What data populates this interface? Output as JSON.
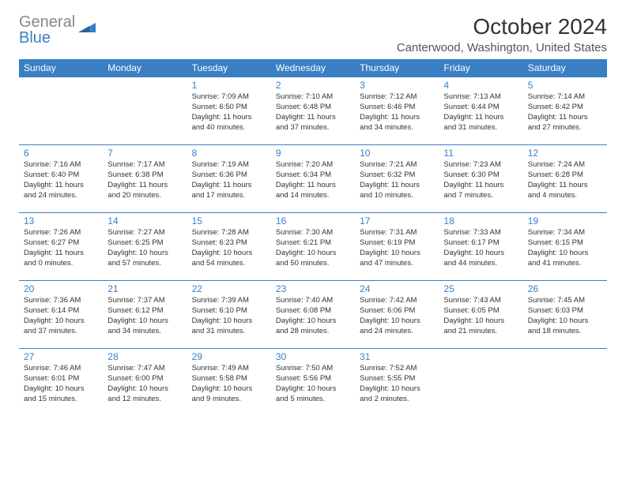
{
  "brand": {
    "word1": "General",
    "word2": "Blue"
  },
  "title": "October 2024",
  "location": "Canterwood, Washington, United States",
  "colors": {
    "header_bg": "#3a7fc4",
    "header_text": "#ffffff",
    "daynum": "#3a7fc4",
    "rule": "#3a7fc4",
    "body_text": "#333333"
  },
  "day_headers": [
    "Sunday",
    "Monday",
    "Tuesday",
    "Wednesday",
    "Thursday",
    "Friday",
    "Saturday"
  ],
  "weeks": [
    [
      null,
      null,
      {
        "n": "1",
        "sr": "7:09 AM",
        "ss": "6:50 PM",
        "dl": "11 hours and 40 minutes."
      },
      {
        "n": "2",
        "sr": "7:10 AM",
        "ss": "6:48 PM",
        "dl": "11 hours and 37 minutes."
      },
      {
        "n": "3",
        "sr": "7:12 AM",
        "ss": "6:46 PM",
        "dl": "11 hours and 34 minutes."
      },
      {
        "n": "4",
        "sr": "7:13 AM",
        "ss": "6:44 PM",
        "dl": "11 hours and 31 minutes."
      },
      {
        "n": "5",
        "sr": "7:14 AM",
        "ss": "6:42 PM",
        "dl": "11 hours and 27 minutes."
      }
    ],
    [
      {
        "n": "6",
        "sr": "7:16 AM",
        "ss": "6:40 PM",
        "dl": "11 hours and 24 minutes."
      },
      {
        "n": "7",
        "sr": "7:17 AM",
        "ss": "6:38 PM",
        "dl": "11 hours and 20 minutes."
      },
      {
        "n": "8",
        "sr": "7:19 AM",
        "ss": "6:36 PM",
        "dl": "11 hours and 17 minutes."
      },
      {
        "n": "9",
        "sr": "7:20 AM",
        "ss": "6:34 PM",
        "dl": "11 hours and 14 minutes."
      },
      {
        "n": "10",
        "sr": "7:21 AM",
        "ss": "6:32 PM",
        "dl": "11 hours and 10 minutes."
      },
      {
        "n": "11",
        "sr": "7:23 AM",
        "ss": "6:30 PM",
        "dl": "11 hours and 7 minutes."
      },
      {
        "n": "12",
        "sr": "7:24 AM",
        "ss": "6:28 PM",
        "dl": "11 hours and 4 minutes."
      }
    ],
    [
      {
        "n": "13",
        "sr": "7:26 AM",
        "ss": "6:27 PM",
        "dl": "11 hours and 0 minutes."
      },
      {
        "n": "14",
        "sr": "7:27 AM",
        "ss": "6:25 PM",
        "dl": "10 hours and 57 minutes."
      },
      {
        "n": "15",
        "sr": "7:28 AM",
        "ss": "6:23 PM",
        "dl": "10 hours and 54 minutes."
      },
      {
        "n": "16",
        "sr": "7:30 AM",
        "ss": "6:21 PM",
        "dl": "10 hours and 50 minutes."
      },
      {
        "n": "17",
        "sr": "7:31 AM",
        "ss": "6:19 PM",
        "dl": "10 hours and 47 minutes."
      },
      {
        "n": "18",
        "sr": "7:33 AM",
        "ss": "6:17 PM",
        "dl": "10 hours and 44 minutes."
      },
      {
        "n": "19",
        "sr": "7:34 AM",
        "ss": "6:15 PM",
        "dl": "10 hours and 41 minutes."
      }
    ],
    [
      {
        "n": "20",
        "sr": "7:36 AM",
        "ss": "6:14 PM",
        "dl": "10 hours and 37 minutes."
      },
      {
        "n": "21",
        "sr": "7:37 AM",
        "ss": "6:12 PM",
        "dl": "10 hours and 34 minutes."
      },
      {
        "n": "22",
        "sr": "7:39 AM",
        "ss": "6:10 PM",
        "dl": "10 hours and 31 minutes."
      },
      {
        "n": "23",
        "sr": "7:40 AM",
        "ss": "6:08 PM",
        "dl": "10 hours and 28 minutes."
      },
      {
        "n": "24",
        "sr": "7:42 AM",
        "ss": "6:06 PM",
        "dl": "10 hours and 24 minutes."
      },
      {
        "n": "25",
        "sr": "7:43 AM",
        "ss": "6:05 PM",
        "dl": "10 hours and 21 minutes."
      },
      {
        "n": "26",
        "sr": "7:45 AM",
        "ss": "6:03 PM",
        "dl": "10 hours and 18 minutes."
      }
    ],
    [
      {
        "n": "27",
        "sr": "7:46 AM",
        "ss": "6:01 PM",
        "dl": "10 hours and 15 minutes."
      },
      {
        "n": "28",
        "sr": "7:47 AM",
        "ss": "6:00 PM",
        "dl": "10 hours and 12 minutes."
      },
      {
        "n": "29",
        "sr": "7:49 AM",
        "ss": "5:58 PM",
        "dl": "10 hours and 9 minutes."
      },
      {
        "n": "30",
        "sr": "7:50 AM",
        "ss": "5:56 PM",
        "dl": "10 hours and 5 minutes."
      },
      {
        "n": "31",
        "sr": "7:52 AM",
        "ss": "5:55 PM",
        "dl": "10 hours and 2 minutes."
      },
      null,
      null
    ]
  ],
  "labels": {
    "sunrise": "Sunrise:",
    "sunset": "Sunset:",
    "daylight": "Daylight:"
  }
}
